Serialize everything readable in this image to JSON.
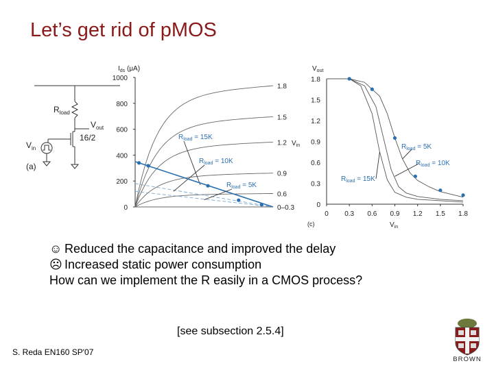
{
  "slide": {
    "title": "Let’s get rid of pMOS",
    "bullets": [
      {
        "icon": "smiley-face-icon",
        "glyph": "☺",
        "text": "Reduced the capacitance and improved the delay"
      },
      {
        "icon": "frown-face-icon",
        "glyph": "☹",
        "text": "Increased static power consumption"
      },
      {
        "icon": "",
        "glyph": "",
        "text": "How can we implement the R easily in a CMOS process?"
      }
    ],
    "reference": "[see subsection 2.5.4]",
    "footer": "S. Reda EN160 SP'07",
    "logo_text": "BROWN"
  },
  "circuit": {
    "load_label": "R",
    "load_sub": "load",
    "vout_label": "V",
    "vout_sub": "out",
    "size_label": "16/2",
    "vin_label": "V",
    "vin_sub": "in",
    "part_label": "(a)"
  },
  "chart_data": [
    {
      "type": "line",
      "ylabel_main": "I",
      "ylabel_sub": "ds",
      "ylabel_unit": " (μA)",
      "y_ticks": [
        "0",
        "200",
        "400",
        "600",
        "800",
        "1000"
      ],
      "ylim": [
        0,
        1000
      ],
      "xlim": [
        0,
        1.8
      ],
      "curve_labels": [
        "1.8",
        "1.5",
        "1.2",
        "0.9",
        "0.6",
        "0–0.3"
      ],
      "vin_axis_label": "V",
      "vin_axis_sub": "in",
      "series": [
        {
          "name": "1.8",
          "saturation": 860
        },
        {
          "name": "1.5",
          "saturation": 640
        },
        {
          "name": "1.2",
          "saturation": 460
        },
        {
          "name": "0.9",
          "saturation": 240
        },
        {
          "name": "0.6",
          "saturation": 95
        },
        {
          "name": "0–0.3",
          "saturation": 0
        }
      ],
      "load_lines": [
        {
          "label_main": "R",
          "label_sub": "load",
          "label_rest": " = 15K",
          "x": [
            0,
            1.8
          ],
          "y": [
            120,
            0
          ]
        },
        {
          "label_main": "R",
          "label_sub": "load",
          "label_rest": " = 10K",
          "x": [
            0,
            1.8
          ],
          "y": [
            180,
            0
          ]
        },
        {
          "label_main": "R",
          "label_sub": "load",
          "label_rest": " = 5K",
          "x": [
            0,
            1.8
          ],
          "y": [
            350,
            0
          ]
        }
      ],
      "load_line_points": {
        "x": [
          0.05,
          0.17,
          0.95,
          1.35,
          1.65
        ],
        "y": [
          340,
          318,
          163,
          52,
          17
        ]
      },
      "colors": {
        "curves": "#666666",
        "load_line": "#2a6fb0",
        "points": "#2a6fb0",
        "labels": "#2a6fb0"
      }
    },
    {
      "type": "line",
      "ylabel_main": "V",
      "ylabel_sub": "out",
      "y_ticks": [
        "0",
        "0.3",
        "0.6",
        "0.9",
        "1.2",
        "1.5",
        "1.8"
      ],
      "x_ticks": [
        "0",
        "0.3",
        "0.6",
        "0.9",
        "1.2",
        "1.5",
        "1.8"
      ],
      "xlabel_main": "V",
      "xlabel_sub": "in",
      "xlim": [
        0,
        1.8
      ],
      "ylim": [
        0,
        1.8
      ],
      "part_label": "(c)",
      "series": [
        {
          "label_main": "R",
          "label_sub": "load",
          "label_rest": " = 5K",
          "x": [
            0,
            0.3,
            0.5,
            0.7,
            0.8,
            0.9,
            1.0,
            1.1,
            1.2,
            1.35,
            1.5,
            1.8
          ],
          "y": [
            1.8,
            1.8,
            1.75,
            1.55,
            1.3,
            0.95,
            0.65,
            0.45,
            0.34,
            0.25,
            0.18,
            0.1
          ]
        },
        {
          "label_main": "R",
          "label_sub": "load",
          "label_rest": " = 10K",
          "x": [
            0,
            0.3,
            0.5,
            0.65,
            0.75,
            0.85,
            0.95,
            1.05,
            1.2,
            1.5,
            1.8
          ],
          "y": [
            1.8,
            1.8,
            1.7,
            1.4,
            0.95,
            0.5,
            0.25,
            0.16,
            0.11,
            0.07,
            0.05
          ]
        },
        {
          "label_main": "R",
          "label_sub": "load",
          "label_rest": " = 15K",
          "x": [
            0,
            0.3,
            0.45,
            0.6,
            0.7,
            0.8,
            0.9,
            1.05,
            1.2,
            1.5,
            1.8
          ],
          "y": [
            1.8,
            1.8,
            1.7,
            1.3,
            0.75,
            0.35,
            0.17,
            0.1,
            0.07,
            0.05,
            0.03
          ]
        }
      ],
      "points": {
        "x": [
          0.3,
          0.6,
          0.9,
          1.17,
          1.5,
          1.8
        ],
        "y": [
          1.8,
          1.65,
          0.95,
          0.4,
          0.2,
          0.13
        ]
      },
      "colors": {
        "curves": "#555555",
        "points": "#2a6fb0",
        "labels": "#2a6fb0"
      }
    }
  ]
}
